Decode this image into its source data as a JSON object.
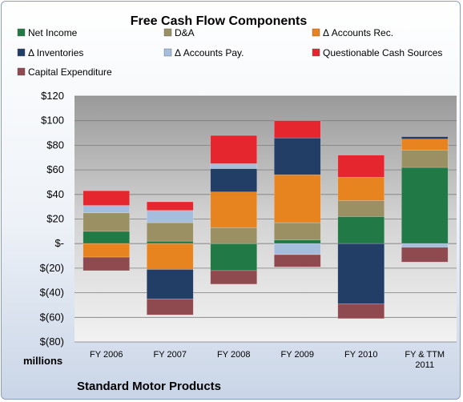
{
  "chart_data": {
    "type": "bar",
    "stacked": true,
    "title": "Free Cash Flow Components",
    "company": "Standard Motor Products",
    "units_label": "millions",
    "categories": [
      "FY 2006",
      "FY 2007",
      "FY 2008",
      "FY 2009",
      "FY 2010",
      "FY & TTM 2011"
    ],
    "ylim": [
      -80,
      120
    ],
    "yticks": [
      120,
      100,
      80,
      60,
      40,
      20,
      0,
      -20,
      -40,
      -60,
      -80
    ],
    "ytick_labels": [
      "$120",
      "$100",
      "$80",
      "$60",
      "$40",
      "$20",
      "$-",
      "$(20)",
      "$(40)",
      "$(60)",
      "$(80)"
    ],
    "grid": true,
    "legend_position": "top",
    "series": [
      {
        "name": "Net Income",
        "color": "#217a45",
        "values": [
          10,
          2,
          -22,
          3,
          22,
          62
        ]
      },
      {
        "name": "D&A",
        "color": "#9a9063",
        "values": [
          15,
          15,
          13,
          14,
          13,
          14
        ]
      },
      {
        "name": "Δ Accounts Rec.",
        "color": "#e8841f",
        "values": [
          -11,
          -21,
          29,
          39,
          19,
          9
        ]
      },
      {
        "name": "Δ Inventories",
        "color": "#223d66",
        "values": [
          0,
          -24,
          19,
          30,
          -49,
          2
        ]
      },
      {
        "name": "Δ Accounts Pay.",
        "color": "#a6bede",
        "values": [
          6,
          10,
          4,
          -9,
          0,
          -3
        ]
      },
      {
        "name": "Questionable Cash Sources",
        "color": "#e6262e",
        "values": [
          12,
          7,
          23,
          14,
          18,
          0
        ]
      },
      {
        "name": "Capital Expenditure",
        "color": "#8f4a4f",
        "values": [
          -11,
          -13,
          -11,
          -10,
          -12,
          -12
        ]
      }
    ]
  }
}
